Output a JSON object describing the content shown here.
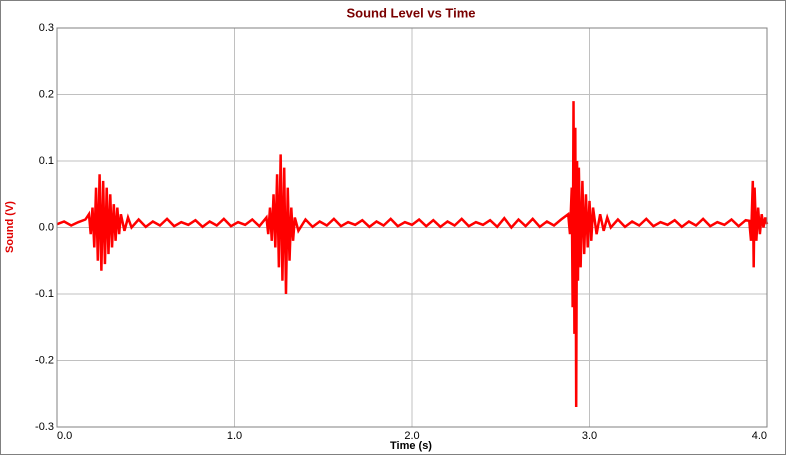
{
  "chart_data": {
    "type": "line",
    "title": "Sound Level vs Time",
    "xlabel": "Time (s)",
    "ylabel": "Sound (V)",
    "color": "#ff0000",
    "grid": true,
    "xlim": [
      0,
      4.0
    ],
    "ylim": [
      -0.3,
      0.3
    ],
    "xticks": [
      {
        "value": 0,
        "label": "0.0"
      },
      {
        "value": 1,
        "label": "1.0"
      },
      {
        "value": 2,
        "label": "2.0"
      },
      {
        "value": 3,
        "label": "3.0"
      },
      {
        "value": 4,
        "label": "4.0"
      }
    ],
    "yticks": [
      -0.3,
      -0.2,
      -0.1,
      {
        "value": 0,
        "label": "0.0"
      },
      0.1,
      0.2,
      0.3
    ],
    "x": [
      0,
      0.04,
      0.08,
      0.12,
      0.16,
      0.18,
      0.19,
      0.2,
      0.21,
      0.22,
      0.23,
      0.24,
      0.25,
      0.26,
      0.27,
      0.28,
      0.29,
      0.3,
      0.31,
      0.32,
      0.33,
      0.34,
      0.35,
      0.36,
      0.38,
      0.4,
      0.42,
      0.46,
      0.5,
      0.54,
      0.58,
      0.62,
      0.66,
      0.7,
      0.74,
      0.78,
      0.82,
      0.86,
      0.9,
      0.94,
      0.98,
      1.02,
      1.06,
      1.1,
      1.14,
      1.18,
      1.19,
      1.2,
      1.21,
      1.22,
      1.23,
      1.24,
      1.25,
      1.26,
      1.27,
      1.28,
      1.29,
      1.3,
      1.31,
      1.32,
      1.33,
      1.34,
      1.36,
      1.4,
      1.44,
      1.48,
      1.52,
      1.56,
      1.6,
      1.64,
      1.68,
      1.72,
      1.76,
      1.8,
      1.84,
      1.88,
      1.92,
      1.96,
      2.0,
      2.04,
      2.08,
      2.12,
      2.16,
      2.2,
      2.24,
      2.28,
      2.32,
      2.36,
      2.4,
      2.44,
      2.48,
      2.52,
      2.56,
      2.6,
      2.64,
      2.68,
      2.72,
      2.76,
      2.8,
      2.84,
      2.88,
      2.89,
      2.9,
      2.905,
      2.91,
      2.915,
      2.92,
      2.925,
      2.93,
      2.935,
      2.94,
      2.95,
      2.96,
      2.97,
      2.98,
      2.99,
      3.0,
      3.01,
      3.02,
      3.04,
      3.06,
      3.08,
      3.1,
      3.12,
      3.16,
      3.2,
      3.24,
      3.28,
      3.32,
      3.36,
      3.4,
      3.44,
      3.48,
      3.52,
      3.56,
      3.6,
      3.64,
      3.68,
      3.72,
      3.76,
      3.8,
      3.84,
      3.88,
      3.9,
      3.91,
      3.92,
      3.925,
      3.93,
      3.94,
      3.95,
      3.96,
      3.97,
      3.98,
      3.99,
      4.0
    ],
    "values": [
      0.005,
      0.009,
      0.003,
      0.008,
      0.012,
      0.02,
      -0.01,
      0.03,
      -0.03,
      0.06,
      -0.05,
      0.08,
      -0.065,
      0.07,
      -0.055,
      0.06,
      -0.04,
      0.05,
      -0.03,
      0.035,
      -0.02,
      0.03,
      -0.01,
      0.02,
      -0.005,
      0.015,
      0.0,
      0.012,
      0.001,
      0.009,
      0.003,
      0.013,
      0.002,
      0.008,
      0.004,
      0.011,
      0.001,
      0.009,
      0.003,
      0.013,
      0.002,
      0.008,
      0.004,
      0.012,
      0.002,
      0.015,
      -0.01,
      0.03,
      -0.02,
      0.05,
      -0.03,
      0.08,
      -0.06,
      0.11,
      -0.08,
      0.09,
      -0.1,
      0.06,
      -0.05,
      0.03,
      -0.02,
      0.015,
      -0.005,
      0.012,
      0.001,
      0.009,
      0.003,
      0.013,
      0.002,
      0.008,
      0.004,
      0.011,
      0.001,
      0.009,
      0.003,
      0.013,
      0.002,
      0.008,
      0.004,
      0.012,
      0.002,
      0.011,
      0.001,
      0.009,
      0.003,
      0.013,
      0.002,
      0.008,
      0.004,
      0.011,
      0.001,
      0.014,
      0.0,
      0.012,
      0.002,
      0.013,
      0.001,
      0.009,
      0.003,
      0.012,
      0.02,
      -0.01,
      0.06,
      -0.12,
      0.19,
      -0.16,
      0.15,
      -0.27,
      0.1,
      -0.08,
      0.09,
      -0.06,
      0.07,
      -0.04,
      0.05,
      -0.03,
      0.04,
      -0.02,
      0.03,
      -0.01,
      0.02,
      -0.005,
      0.015,
      0.0,
      0.012,
      0.001,
      0.009,
      0.003,
      0.013,
      0.002,
      0.008,
      0.004,
      0.011,
      0.001,
      0.009,
      0.003,
      0.013,
      0.002,
      0.008,
      0.004,
      0.012,
      0.002,
      0.011,
      0.01,
      -0.02,
      0.07,
      -0.06,
      0.06,
      -0.02,
      0.03,
      -0.01,
      0.02,
      0.0,
      0.015,
      0.005
    ]
  }
}
